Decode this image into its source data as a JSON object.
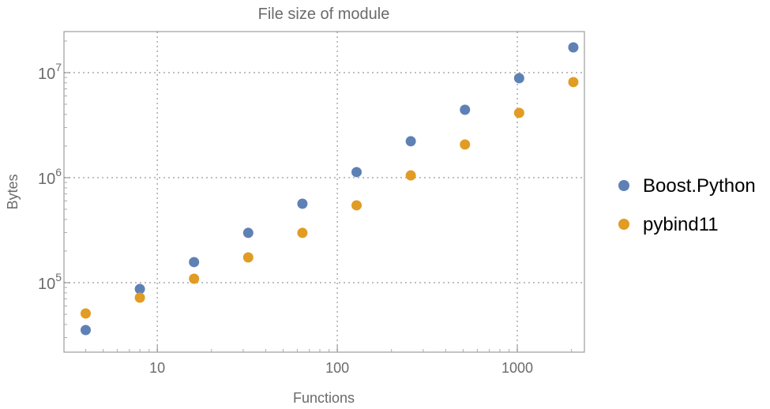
{
  "chart_data": {
    "type": "scatter",
    "title": "File size of module",
    "xlabel": "Functions",
    "ylabel": "Bytes",
    "xscale": "log",
    "yscale": "log",
    "xlim": [
      3.03,
      2360
    ],
    "ylim": [
      21800,
      24600000
    ],
    "grid": true,
    "legend_position": "right",
    "x_ticks": [
      {
        "value": 10,
        "label": "10"
      },
      {
        "value": 100,
        "label": "100"
      },
      {
        "value": 1000,
        "label": "1000"
      }
    ],
    "y_ticks": [
      {
        "value": 100000,
        "base": "10",
        "exp": "5"
      },
      {
        "value": 1000000,
        "base": "10",
        "exp": "6"
      },
      {
        "value": 10000000,
        "base": "10",
        "exp": "7"
      }
    ],
    "x": [
      4,
      8,
      16,
      32,
      64,
      128,
      256,
      512,
      1024,
      2048
    ],
    "series": [
      {
        "name": "Boost.Python",
        "color": "#5E81B5",
        "values": [
          35400,
          87000,
          157000,
          298000,
          565000,
          1130000,
          2220000,
          4430000,
          8860000,
          17400000
        ]
      },
      {
        "name": "pybind11",
        "color": "#E19C24",
        "values": [
          50900,
          72000,
          109000,
          174000,
          298000,
          545000,
          1050000,
          2070000,
          4140000,
          8130000
        ]
      }
    ]
  }
}
